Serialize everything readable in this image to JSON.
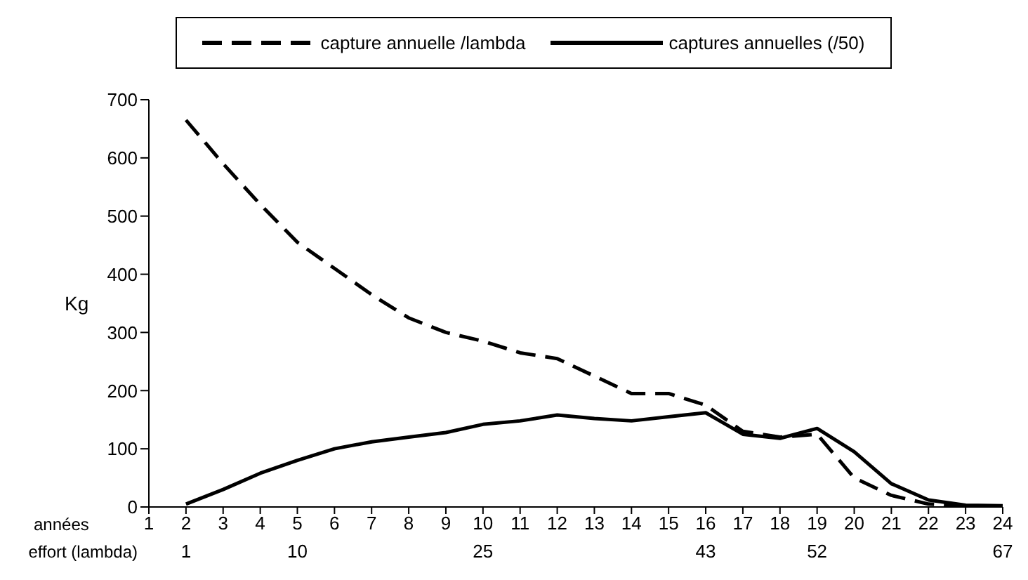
{
  "chart_data": {
    "type": "line",
    "ylabel": "Kg",
    "xlabel": "années",
    "xlim": [
      1,
      24
    ],
    "xticks": [
      1,
      2,
      3,
      4,
      5,
      6,
      7,
      8,
      9,
      10,
      11,
      12,
      13,
      14,
      15,
      16,
      17,
      18,
      19,
      20,
      21,
      22,
      23,
      24
    ],
    "x2label": "effort (lambda)",
    "x2lim": [
      -2,
      67
    ],
    "x2ticks": [
      1,
      10,
      25,
      43,
      52,
      67
    ],
    "ylim": [
      0,
      700
    ],
    "yticks": [
      0,
      100,
      200,
      300,
      400,
      500,
      600,
      700
    ],
    "legend": "top",
    "series": [
      {
        "name": "capture annuelle /lambda",
        "color": "#000000",
        "line_style": "dashed",
        "x": [
          2,
          3,
          4,
          5,
          6,
          7,
          8,
          9,
          10,
          11,
          12,
          13,
          14,
          15,
          16,
          17,
          18,
          19,
          20,
          21,
          22,
          23,
          24
        ],
        "values": [
          665,
          590,
          520,
          455,
          410,
          365,
          325,
          300,
          285,
          265,
          255,
          225,
          195,
          195,
          175,
          130,
          120,
          125,
          50,
          20,
          5,
          2,
          0
        ]
      },
      {
        "name": "captures annuelles (/50)",
        "color": "#000000",
        "line_style": "solid",
        "x": [
          2,
          3,
          4,
          5,
          6,
          7,
          8,
          9,
          10,
          11,
          12,
          13,
          14,
          15,
          16,
          17,
          18,
          19,
          20,
          21,
          22,
          23,
          24
        ],
        "values": [
          5,
          30,
          58,
          80,
          100,
          112,
          120,
          128,
          142,
          148,
          158,
          152,
          148,
          155,
          162,
          125,
          118,
          135,
          95,
          40,
          12,
          3,
          2
        ]
      }
    ]
  }
}
